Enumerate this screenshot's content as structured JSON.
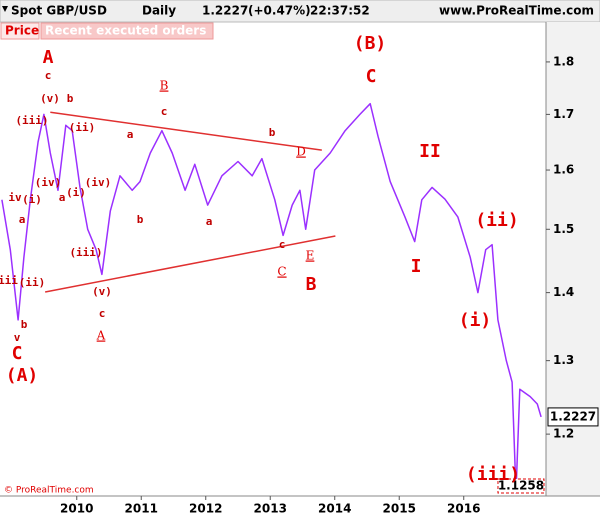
{
  "chart_data": {
    "type": "line",
    "title": "Spot GBP/USD",
    "timeframe": "Daily",
    "change": "(+0.47%)",
    "time": "22:37:52",
    "source": "www.ProRealTime.com",
    "tabs": [
      "Price",
      "Recent executed orders"
    ],
    "footer": "© ProRealTime.com",
    "log_scale": true,
    "x": [
      2008.84,
      2008.97,
      2009.09,
      2009.18,
      2009.28,
      2009.4,
      2009.49,
      2009.59,
      2009.71,
      2009.83,
      2009.93,
      2010.05,
      2010.17,
      2010.3,
      2010.39,
      2010.52,
      2010.67,
      2010.86,
      2010.98,
      2011.14,
      2011.32,
      2011.48,
      2011.68,
      2011.83,
      2012.03,
      2012.25,
      2012.5,
      2012.72,
      2012.87,
      2013.07,
      2013.2,
      2013.34,
      2013.46,
      2013.55,
      2013.69,
      2013.93,
      2014.16,
      2014.39,
      2014.55,
      2014.67,
      2014.86,
      2015.09,
      2015.24,
      2015.35,
      2015.51,
      2015.71,
      2015.91,
      2016.1,
      2016.22,
      2016.34,
      2016.44,
      2016.53,
      2016.66,
      2016.75,
      2016.81,
      2016.87,
      2017.03,
      2017.14,
      2017.2
    ],
    "series": [
      {
        "name": "Spot GBP/USD",
        "color": "#9b30ff",
        "values": [
          1.549,
          1.467,
          1.359,
          1.455,
          1.549,
          1.65,
          1.7,
          1.63,
          1.565,
          1.68,
          1.67,
          1.57,
          1.5,
          1.467,
          1.428,
          1.53,
          1.59,
          1.565,
          1.58,
          1.63,
          1.67,
          1.63,
          1.565,
          1.61,
          1.54,
          1.59,
          1.615,
          1.59,
          1.62,
          1.549,
          1.49,
          1.54,
          1.565,
          1.5,
          1.6,
          1.63,
          1.67,
          1.7,
          1.72,
          1.66,
          1.58,
          1.52,
          1.48,
          1.549,
          1.57,
          1.55,
          1.52,
          1.455,
          1.4,
          1.467,
          1.475,
          1.359,
          1.3,
          1.27,
          1.1258,
          1.26,
          1.25,
          1.24,
          1.2227
        ]
      }
    ],
    "trendlines": [
      {
        "color": "#e03030",
        "x": [
          2009.59,
          2013.8
        ],
        "y": [
          1.704,
          1.635
        ]
      },
      {
        "color": "#e03030",
        "x": [
          2009.51,
          2014.01
        ],
        "y": [
          1.401,
          1.489
        ]
      }
    ],
    "annotations": [
      "A",
      "c",
      "(v)",
      "b",
      "(iii)",
      "(ii)",
      "a",
      "B",
      "c",
      "b",
      "D",
      "(B)",
      "C",
      "II",
      "(ii)",
      "iv",
      "(i)",
      "(iv)",
      "(i)",
      "(iv)",
      "a",
      "a",
      "iii",
      "(ii)",
      "(iii)",
      "b",
      "a",
      "c",
      "C",
      "E",
      "B",
      "I",
      "(i)",
      "(v)",
      "c",
      "A",
      "b",
      "v",
      "C",
      "(A)",
      "(iii)"
    ],
    "xlim": [
      2008.81,
      2017.26
    ],
    "xticks": [
      2010,
      2011,
      2012,
      2013,
      2014,
      2015,
      2016
    ],
    "ylim": [
      1.123,
      1.88
    ],
    "yticks": [
      1.2,
      1.3,
      1.4,
      1.5,
      1.6,
      1.7,
      1.8
    ]
  }
}
